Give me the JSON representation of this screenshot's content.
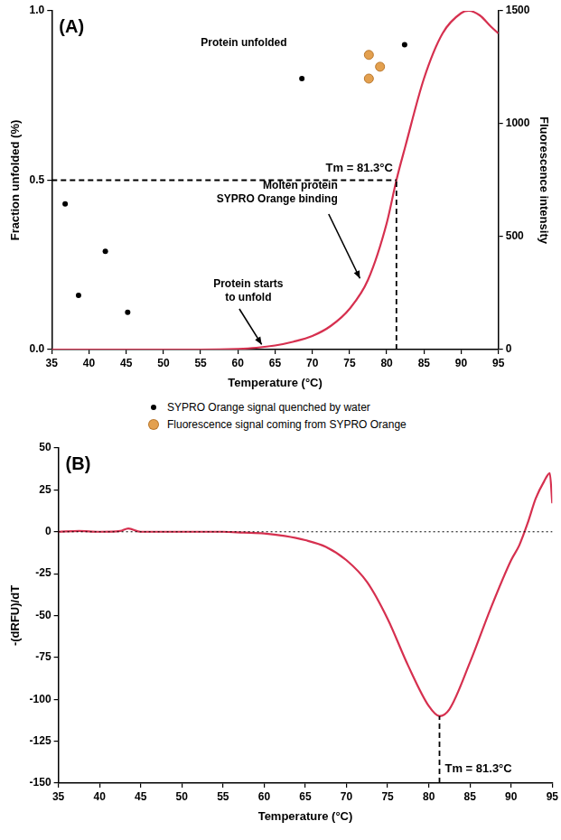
{
  "chart_data": [
    {
      "type": "line",
      "panel": "(A)",
      "x_label": "Temperature (°C)",
      "y_label": "Fraction unfolded (%)",
      "y2_label": "Fluorescence intensity",
      "x": [
        35,
        40,
        45,
        50,
        55,
        60,
        62.5,
        65,
        67.5,
        70,
        72.5,
        75,
        77.5,
        80,
        81.3,
        82.5,
        85,
        87.5,
        90,
        91,
        92.5,
        94,
        95
      ],
      "series": [
        {
          "color": "#d6304f",
          "axis": "y2",
          "values": [
            0,
            0,
            0,
            0,
            0,
            3,
            8,
            18,
            35,
            60,
            105,
            180,
            310,
            560,
            750,
            900,
            1200,
            1400,
            1490,
            1500,
            1480,
            1430,
            1400
          ]
        }
      ],
      "xlim": [
        35,
        95
      ],
      "xticks": [
        35,
        40,
        45,
        50,
        55,
        60,
        65,
        70,
        75,
        80,
        85,
        90,
        95
      ],
      "ylim": [
        0,
        1
      ],
      "yticks": [
        {
          "value": 0,
          "label": "0.0"
        },
        0.5,
        {
          "value": 1,
          "label": "1.0"
        }
      ],
      "y2lim": [
        0,
        1500
      ],
      "y2ticks": [
        0,
        500,
        1000,
        1500
      ],
      "grid": false,
      "tm": 81.3,
      "tm_level": 0.5,
      "tm_label": "Tm = 81.3°C",
      "annotations": [
        {
          "text": "Protein unfolded"
        },
        {
          "text": [
            "Molten protein",
            "SYPRO Orange binding"
          ]
        },
        {
          "text": [
            "Protein starts",
            "to unfold"
          ]
        }
      ]
    },
    {
      "type": "line",
      "panel": "(B)",
      "x_label": "Temperature (°C)",
      "y_label": "-(dRFU)/dT",
      "x": [
        35,
        37.5,
        40,
        42.5,
        43.5,
        45,
        47.5,
        50,
        52.5,
        55,
        57.5,
        60,
        62.5,
        65,
        67.5,
        70,
        72.5,
        75,
        77.5,
        80,
        81.3,
        82.5,
        85,
        87.5,
        90,
        91,
        92,
        93,
        94,
        94.7,
        95
      ],
      "series": [
        {
          "color": "#d6304f",
          "values": [
            0,
            0.5,
            0,
            0.5,
            2,
            0,
            0,
            0,
            0,
            0,
            -0.5,
            -1,
            -2.5,
            -5,
            -9,
            -17,
            -30,
            -52,
            -80,
            -104,
            -110,
            -106,
            -78,
            -46,
            -17,
            -8,
            5,
            20,
            30,
            35,
            17
          ]
        }
      ],
      "xlim": [
        35,
        95
      ],
      "xticks": [
        35,
        40,
        45,
        50,
        55,
        60,
        65,
        70,
        75,
        80,
        85,
        90,
        95
      ],
      "ylim": [
        -150,
        50
      ],
      "yticks": [
        -150,
        -125,
        -100,
        -75,
        -50,
        -25,
        0,
        25,
        50
      ],
      "grid": false,
      "reference_lines": [
        {
          "y": 0,
          "line_style": "dotted"
        }
      ],
      "tm": 81.3,
      "tm_label": "Tm = 81.3°C"
    }
  ],
  "key": [
    {
      "label": "SYPRO Orange signal quenched by water",
      "color": "#000000"
    },
    {
      "label": "Fluorescence signal coming from SYPRO Orange",
      "color": "#e3a04f"
    }
  ]
}
